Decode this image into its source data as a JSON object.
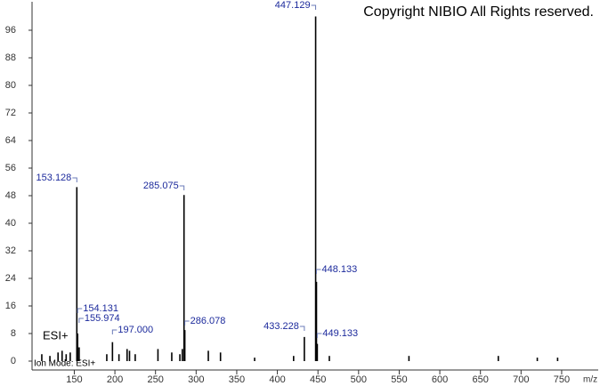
{
  "chart_data": {
    "type": "stem",
    "title": "Copyright NIBIO All Rights reserved.",
    "annotations": [
      "ESI+",
      "Ion Mode: ESI+"
    ],
    "x_label": "m/z",
    "xlim": [
      98,
      795
    ],
    "ylim": [
      0,
      104
    ],
    "xticks": [
      150,
      200,
      250,
      300,
      350,
      400,
      450,
      500,
      550,
      600,
      650,
      700,
      750
    ],
    "yticks": [
      0,
      8,
      16,
      24,
      32,
      40,
      48,
      56,
      64,
      72,
      80,
      88,
      96
    ],
    "color": "#000000",
    "peaks": {
      "x": [
        153.128,
        154.131,
        155.974,
        197.0,
        285.075,
        286.078,
        433.228,
        447.129,
        448.133,
        449.133
      ],
      "x_labels": [
        "153.128",
        "154.131",
        "155.974",
        "197.000",
        "285.075",
        "286.078",
        "433.228",
        "447.129",
        "448.133",
        "449.133"
      ],
      "values": [
        50.5,
        8,
        4,
        5.5,
        48.2,
        9,
        7,
        100,
        23,
        5
      ]
    },
    "minor_peaks": {
      "x": [
        110,
        120,
        130,
        135,
        140,
        145,
        190,
        205,
        215,
        218,
        225,
        253,
        270,
        280,
        283,
        315,
        330,
        372,
        420,
        464,
        562,
        672,
        720,
        745
      ],
      "values": [
        2,
        1.5,
        2.5,
        3,
        2,
        2.5,
        2,
        2,
        3.5,
        3,
        2,
        3.5,
        2.5,
        2,
        3.5,
        3,
        2.5,
        1,
        1.5,
        1.5,
        1.5,
        1.5,
        1,
        1
      ]
    }
  }
}
